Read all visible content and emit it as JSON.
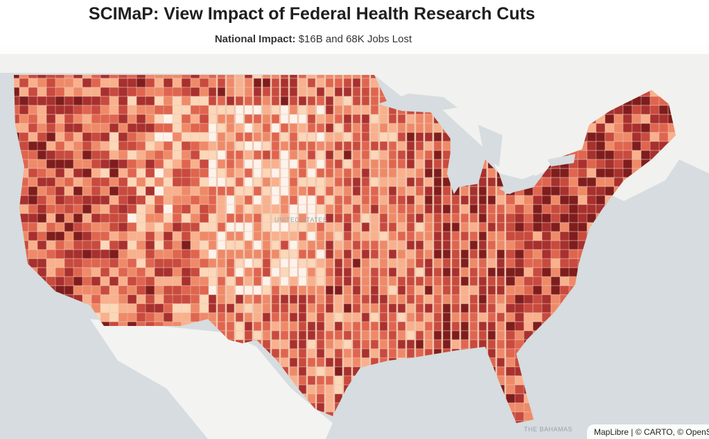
{
  "header": {
    "title": "SCIMaP: View Impact of Federal Health Research Cuts",
    "subtitle_label": "National Impact:",
    "subtitle_value": "$16B and 68K Jobs Lost"
  },
  "map": {
    "place_labels": [
      "UNITED STATES",
      "THE BAHAMAS"
    ],
    "attribution": "MapLibre | © CARTO, © OpenStreetMap",
    "colors": {
      "water": "#d6dcdf",
      "land": "#f3f3f1",
      "county_border": "#e9c6b8",
      "scale": [
        "#fdf3ea",
        "#fcd7b8",
        "#f9b08c",
        "#ef8a68",
        "#e0654f",
        "#c94a3e",
        "#a8302e",
        "#7f1d1d"
      ]
    }
  }
}
